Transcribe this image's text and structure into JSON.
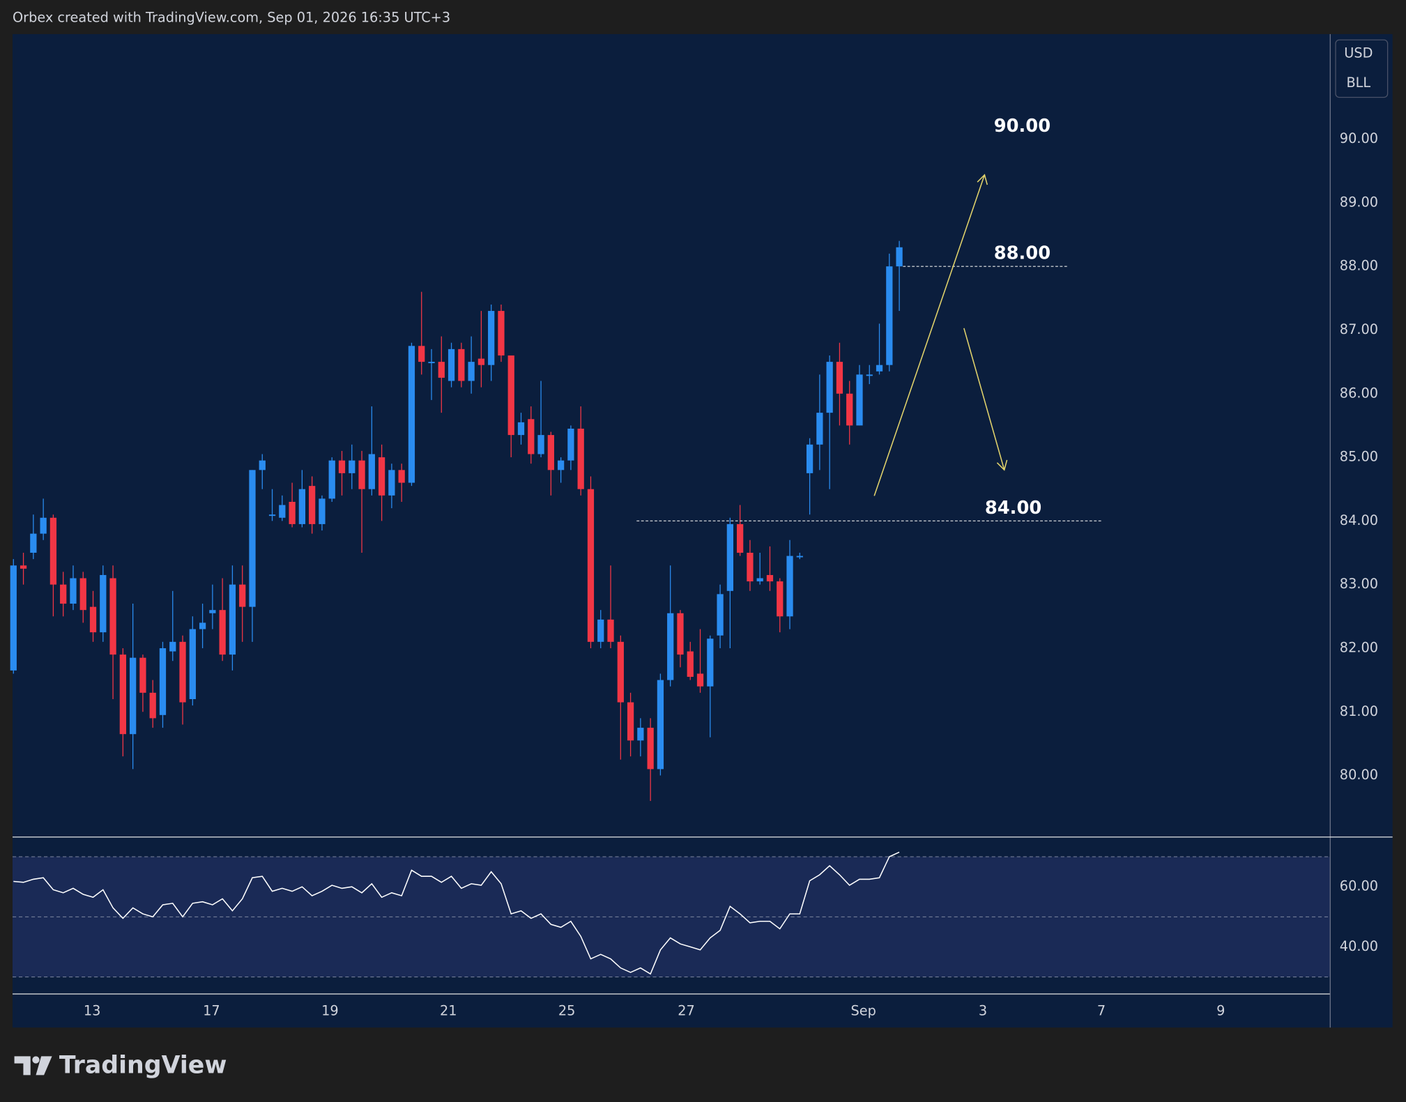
{
  "header": "Orbex created with TradingView.com, Sep 01, 2026 16:35 UTC+3",
  "brand": "TradingView",
  "chart_data": [
    {
      "type": "candlestick",
      "currency": "USD",
      "unit": "BLL",
      "up_color": "#2a8cf0",
      "down_color": "#f23645",
      "grid": false,
      "ylim": [
        79.04,
        91.65
      ],
      "yticks": [
        {
          "value": 80,
          "label": "80.00"
        },
        {
          "value": 81,
          "label": "81.00"
        },
        {
          "value": 82,
          "label": "82.00"
        },
        {
          "value": 83,
          "label": "83.00"
        },
        {
          "value": 84,
          "label": "84.00"
        },
        {
          "value": 85,
          "label": "85.00"
        },
        {
          "value": 86,
          "label": "86.00"
        },
        {
          "value": 87,
          "label": "87.00"
        },
        {
          "value": 88,
          "label": "88.00"
        },
        {
          "value": 89,
          "label": "89.00"
        },
        {
          "value": 90,
          "label": "90.00"
        }
      ],
      "xlim": [
        -0.09,
        132.25
      ],
      "xticks": [
        {
          "value": 7.9,
          "label": "13"
        },
        {
          "value": 19.9,
          "label": "17"
        },
        {
          "value": 31.8,
          "label": "19"
        },
        {
          "value": 43.7,
          "label": "21"
        },
        {
          "value": 55.6,
          "label": "25"
        },
        {
          "value": 67.6,
          "label": "27"
        },
        {
          "value": 85.4,
          "label": "Sep"
        },
        {
          "value": 97.4,
          "label": "3"
        },
        {
          "value": 109.3,
          "label": "7"
        },
        {
          "value": 121.3,
          "label": "9"
        }
      ],
      "annotations": [
        {
          "value": 90,
          "label": "90.00"
        },
        {
          "value": 88,
          "label": "88.00"
        },
        {
          "value": 84,
          "label": "84.00"
        }
      ],
      "open": [
        81.65,
        83.3,
        83.5,
        83.8,
        84.05,
        83.0,
        82.7,
        83.1,
        82.65,
        82.25,
        83.1,
        81.9,
        80.65,
        81.85,
        81.3,
        80.95,
        81.95,
        82.1,
        81.2,
        82.3,
        82.55,
        82.6,
        81.9,
        83.0,
        82.65,
        84.8,
        84.1,
        84.05,
        84.3,
        83.95,
        84.55,
        83.95,
        84.35,
        84.95,
        84.75,
        84.95,
        84.5,
        85.0,
        84.4,
        84.8,
        84.6,
        86.75,
        86.5,
        86.5,
        86.2,
        86.7,
        86.2,
        86.55,
        86.45,
        87.3,
        86.6,
        85.35,
        85.6,
        85.05,
        85.35,
        84.8,
        84.95,
        85.45,
        84.5,
        82.1,
        82.45,
        82.1,
        81.15,
        80.55,
        80.75,
        80.1,
        81.5,
        82.55,
        81.95,
        81.6,
        81.4,
        82.2,
        82.9,
        83.95,
        83.5,
        83.05,
        83.15,
        83.05,
        82.5,
        83.45,
        84.75,
        85.2,
        85.7,
        86.5,
        86.0,
        85.5,
        86.3,
        86.35,
        86.45,
        88.0
      ],
      "high": [
        83.4,
        83.5,
        84.1,
        84.35,
        84.1,
        83.2,
        83.3,
        83.2,
        82.9,
        83.3,
        83.3,
        82.0,
        82.7,
        81.9,
        81.5,
        82.1,
        82.9,
        82.2,
        82.5,
        82.7,
        83.0,
        83.1,
        83.3,
        83.3,
        84.8,
        85.05,
        84.5,
        84.4,
        84.6,
        84.8,
        84.7,
        84.4,
        85.0,
        85.1,
        85.2,
        85.1,
        85.8,
        85.2,
        84.9,
        84.9,
        86.8,
        87.6,
        86.7,
        86.9,
        86.8,
        86.8,
        86.9,
        87.3,
        87.4,
        87.4,
        86.6,
        85.7,
        85.8,
        86.2,
        85.4,
        85.0,
        85.5,
        85.8,
        84.7,
        82.6,
        83.3,
        82.2,
        81.3,
        80.9,
        80.9,
        81.6,
        83.3,
        82.6,
        82.1,
        82.3,
        82.2,
        83.0,
        84.05,
        84.25,
        83.7,
        83.5,
        83.6,
        83.1,
        83.7,
        83.5,
        85.3,
        86.3,
        86.6,
        86.8,
        86.2,
        86.45,
        86.45,
        87.1,
        88.2,
        88.4
      ],
      "low": [
        81.6,
        83.0,
        83.4,
        83.7,
        82.5,
        82.5,
        82.6,
        82.4,
        82.1,
        82.1,
        81.2,
        80.3,
        80.1,
        81.0,
        80.75,
        80.75,
        81.8,
        80.8,
        81.1,
        82.0,
        82.3,
        81.8,
        81.65,
        82.1,
        82.1,
        84.5,
        84.0,
        84.0,
        83.9,
        83.9,
        83.8,
        83.85,
        84.3,
        84.4,
        84.5,
        83.5,
        84.4,
        84.0,
        84.2,
        84.3,
        84.55,
        86.3,
        85.9,
        85.7,
        86.1,
        86.1,
        86.0,
        86.1,
        86.2,
        86.5,
        85.0,
        85.2,
        84.9,
        85.0,
        84.4,
        84.6,
        84.8,
        84.4,
        82.0,
        82.0,
        82.0,
        80.25,
        80.3,
        80.3,
        79.6,
        80.0,
        81.4,
        81.7,
        81.5,
        81.3,
        80.6,
        82.0,
        82.0,
        83.45,
        82.9,
        83.0,
        82.9,
        82.25,
        82.3,
        83.4,
        84.1,
        84.8,
        84.5,
        85.5,
        85.2,
        85.5,
        86.15,
        86.3,
        86.35,
        87.3
      ],
      "close": [
        83.3,
        83.25,
        83.8,
        84.05,
        83.0,
        82.7,
        83.1,
        82.6,
        82.25,
        83.15,
        81.9,
        80.65,
        81.85,
        81.3,
        80.9,
        82.0,
        82.1,
        81.15,
        82.3,
        82.4,
        82.6,
        81.9,
        83.0,
        82.65,
        84.8,
        84.95,
        84.1,
        84.25,
        83.95,
        84.5,
        83.95,
        84.35,
        84.95,
        84.75,
        84.95,
        84.5,
        85.05,
        84.4,
        84.8,
        84.6,
        86.75,
        86.5,
        86.5,
        86.25,
        86.7,
        86.2,
        86.5,
        86.45,
        87.3,
        86.6,
        85.35,
        85.55,
        85.05,
        85.35,
        84.8,
        84.95,
        85.45,
        84.5,
        82.1,
        82.45,
        82.1,
        81.15,
        80.55,
        80.75,
        80.1,
        81.5,
        82.55,
        81.9,
        81.55,
        81.4,
        82.15,
        82.85,
        83.95,
        83.5,
        83.05,
        83.1,
        83.05,
        82.5,
        83.45,
        83.45,
        85.2,
        85.7,
        86.5,
        86.0,
        85.5,
        86.3,
        86.3,
        86.45,
        88.0,
        88.3
      ]
    },
    {
      "type": "line",
      "color": "#ffffff",
      "band_color": "#1a2a56",
      "bands": [
        30,
        50,
        70
      ],
      "ylim": [
        24.5,
        76.7
      ],
      "yticks": [
        {
          "value": 40,
          "label": "40.00"
        },
        {
          "value": 60,
          "label": "60.00"
        }
      ],
      "values": [
        61.8,
        61.5,
        62.5,
        63,
        59,
        58,
        59.5,
        57.5,
        56.5,
        59,
        53,
        49.5,
        53,
        51,
        50,
        54,
        54.5,
        50,
        54.5,
        55,
        54,
        56,
        52,
        56,
        63,
        63.5,
        58.5,
        59.5,
        58.5,
        60,
        57,
        58.5,
        60.5,
        59.5,
        60,
        58,
        61,
        56.5,
        58,
        57,
        65.5,
        63.5,
        63.5,
        61.5,
        63.5,
        59.5,
        61,
        60.5,
        65,
        61,
        51,
        52,
        49.5,
        51,
        47.5,
        46.5,
        48.5,
        43.5,
        36,
        37.5,
        36,
        33,
        31.5,
        33,
        31,
        39,
        43,
        41,
        40,
        39,
        43,
        45.5,
        53.5,
        51,
        48,
        48.5,
        48.5,
        46,
        51,
        51,
        62,
        64,
        67,
        64,
        60.5,
        62.5,
        62.5,
        63,
        70,
        71.5
      ]
    }
  ]
}
